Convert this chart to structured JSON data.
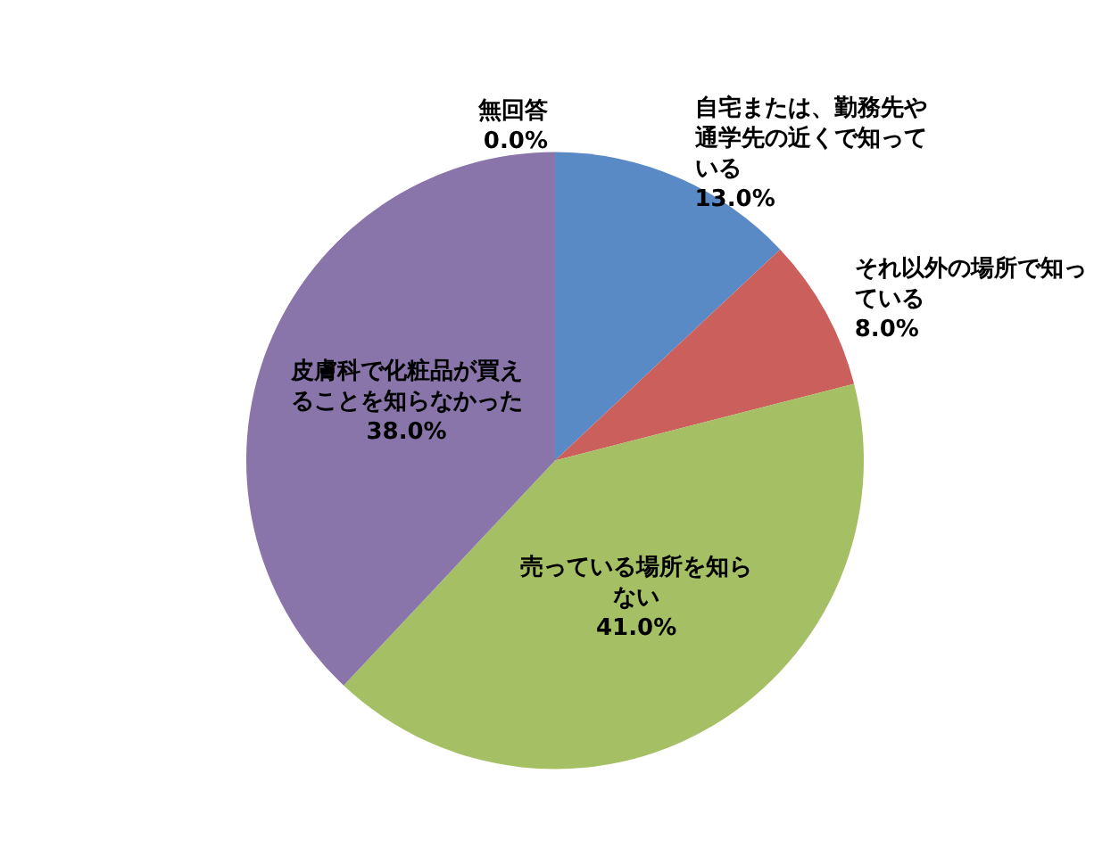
{
  "chart_data": {
    "type": "pie",
    "categories": [
      "自宅または、勤務先や通学先の近くで知っている",
      "それ以外の場所で知っている",
      "売っている場所を知らない",
      "皮膚科で化粧品が買えることを知らなかった",
      "無回答"
    ],
    "values": [
      13,
      8,
      41,
      38,
      0
    ],
    "value_labels": [
      "13.0%",
      "8.0%",
      "41.0%",
      "38.0%",
      "0.0%"
    ],
    "colors": [
      "#5a8ac6",
      "#cb5f5b",
      "#a5bf65",
      "#8a75aa",
      "#7f7f7f"
    ]
  }
}
